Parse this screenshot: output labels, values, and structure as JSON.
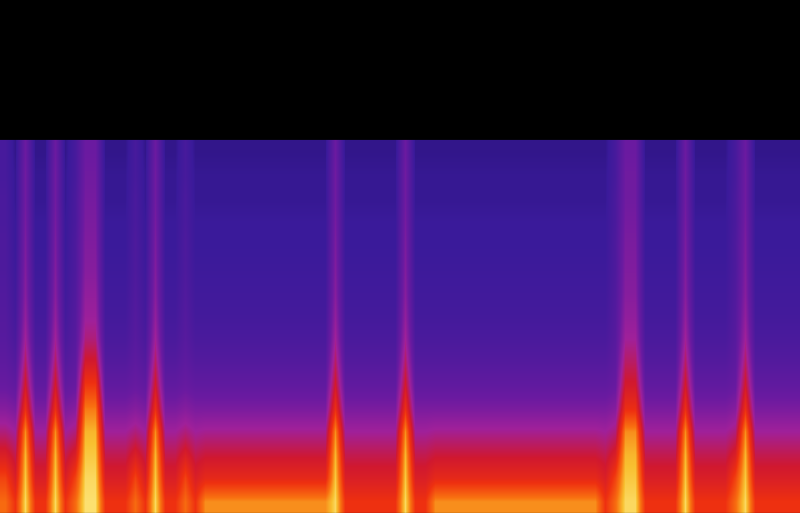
{
  "chart_data": {
    "type": "heatmap",
    "tick_labels": false,
    "grid": false,
    "xlim": [
      -0.5,
      79.5
    ],
    "ylim": [
      -0.5,
      21.5
    ],
    "zlim": [
      0,
      100
    ],
    "z": [
      [
        84,
        75,
        96,
        75,
        75,
        96,
        75,
        84,
        97,
        97,
        75,
        75,
        75,
        84,
        75,
        96,
        75,
        75,
        84,
        75,
        88,
        88,
        88,
        88,
        88,
        88,
        88,
        88,
        88,
        88,
        88,
        88,
        88,
        96,
        75,
        75,
        75,
        75,
        75,
        75,
        96,
        75,
        75,
        88,
        88,
        88,
        88,
        88,
        88,
        88,
        88,
        88,
        88,
        88,
        88,
        88,
        88,
        88,
        88,
        88,
        75,
        84,
        96,
        96,
        75,
        75,
        75,
        75,
        96,
        75,
        75,
        75,
        75,
        84,
        96,
        75,
        75,
        75,
        75,
        75
      ],
      [
        78,
        68,
        94,
        68,
        68,
        94,
        68,
        78,
        96,
        96,
        68,
        68,
        68,
        78,
        68,
        94,
        68,
        68,
        78,
        68,
        72,
        72,
        72,
        72,
        72,
        72,
        72,
        72,
        72,
        72,
        72,
        72,
        72,
        94,
        68,
        68,
        68,
        68,
        68,
        68,
        94,
        68,
        68,
        72,
        72,
        72,
        72,
        72,
        72,
        72,
        72,
        72,
        72,
        72,
        72,
        72,
        72,
        72,
        72,
        72,
        68,
        78,
        94,
        94,
        68,
        68,
        68,
        68,
        94,
        68,
        68,
        68,
        68,
        78,
        94,
        68,
        68,
        68,
        68,
        68
      ],
      [
        68,
        62,
        92,
        62,
        62,
        92,
        62,
        68,
        94,
        94,
        62,
        62,
        62,
        68,
        62,
        92,
        62,
        62,
        68,
        62,
        64,
        64,
        64,
        64,
        64,
        64,
        64,
        64,
        64,
        64,
        64,
        64,
        64,
        92,
        62,
        62,
        62,
        62,
        62,
        62,
        92,
        62,
        62,
        64,
        64,
        64,
        64,
        64,
        64,
        64,
        64,
        64,
        64,
        64,
        64,
        64,
        64,
        64,
        64,
        64,
        62,
        68,
        92,
        92,
        62,
        62,
        62,
        62,
        92,
        62,
        62,
        62,
        62,
        68,
        92,
        62,
        62,
        62,
        62,
        62
      ],
      [
        58,
        55,
        88,
        55,
        55,
        88,
        55,
        58,
        92,
        92,
        55,
        55,
        55,
        58,
        55,
        88,
        55,
        55,
        58,
        55,
        56,
        56,
        56,
        56,
        56,
        56,
        56,
        56,
        56,
        56,
        56,
        56,
        56,
        88,
        55,
        55,
        55,
        55,
        55,
        55,
        88,
        55,
        55,
        56,
        56,
        56,
        56,
        56,
        56,
        56,
        56,
        56,
        56,
        56,
        56,
        56,
        56,
        56,
        56,
        56,
        55,
        58,
        88,
        88,
        55,
        55,
        55,
        55,
        88,
        55,
        55,
        55,
        55,
        58,
        88,
        55,
        55,
        55,
        55,
        55
      ],
      [
        50,
        48,
        74,
        48,
        48,
        74,
        48,
        50,
        86,
        86,
        48,
        48,
        48,
        50,
        48,
        74,
        48,
        48,
        50,
        48,
        48,
        48,
        48,
        48,
        48,
        48,
        48,
        48,
        48,
        48,
        48,
        48,
        48,
        74,
        48,
        48,
        48,
        48,
        48,
        48,
        74,
        48,
        48,
        48,
        48,
        48,
        48,
        48,
        48,
        48,
        48,
        48,
        48,
        48,
        48,
        48,
        48,
        48,
        48,
        48,
        48,
        50,
        74,
        74,
        48,
        48,
        48,
        48,
        74,
        48,
        48,
        48,
        48,
        50,
        74,
        48,
        48,
        48,
        48,
        48
      ],
      [
        44,
        42,
        66,
        42,
        42,
        66,
        42,
        44,
        76,
        76,
        42,
        42,
        42,
        44,
        42,
        66,
        42,
        42,
        44,
        42,
        42,
        42,
        42,
        42,
        42,
        42,
        42,
        42,
        42,
        42,
        42,
        42,
        42,
        66,
        42,
        42,
        42,
        42,
        42,
        42,
        66,
        42,
        42,
        42,
        42,
        42,
        42,
        42,
        42,
        42,
        42,
        42,
        42,
        42,
        42,
        42,
        42,
        42,
        42,
        42,
        42,
        44,
        66,
        66,
        42,
        42,
        42,
        42,
        66,
        42,
        42,
        42,
        42,
        44,
        66,
        42,
        42,
        42,
        42,
        42
      ],
      [
        41,
        38,
        60,
        38,
        38,
        60,
        38,
        41,
        66,
        66,
        38,
        38,
        38,
        41,
        38,
        60,
        38,
        38,
        41,
        38,
        38,
        38,
        38,
        38,
        38,
        38,
        38,
        38,
        38,
        38,
        38,
        38,
        38,
        60,
        38,
        38,
        38,
        38,
        38,
        38,
        60,
        38,
        38,
        38,
        38,
        38,
        38,
        38,
        38,
        38,
        38,
        38,
        38,
        38,
        38,
        38,
        38,
        38,
        38,
        38,
        38,
        41,
        60,
        60,
        38,
        38,
        38,
        38,
        60,
        38,
        38,
        38,
        38,
        41,
        60,
        38,
        38,
        38,
        38,
        38
      ],
      [
        39,
        35,
        55,
        35,
        35,
        55,
        35,
        39,
        58,
        58,
        35,
        35,
        35,
        39,
        35,
        55,
        35,
        35,
        39,
        35,
        35,
        35,
        35,
        35,
        35,
        35,
        35,
        35,
        35,
        35,
        35,
        35,
        35,
        55,
        35,
        35,
        35,
        35,
        35,
        35,
        55,
        35,
        35,
        35,
        35,
        35,
        35,
        35,
        35,
        35,
        35,
        35,
        35,
        35,
        35,
        35,
        35,
        35,
        35,
        35,
        35,
        39,
        55,
        55,
        35,
        35,
        35,
        35,
        55,
        35,
        35,
        35,
        35,
        39,
        55,
        35,
        35,
        35,
        35,
        35
      ],
      [
        38,
        33,
        52,
        33,
        33,
        52,
        33,
        38,
        54,
        54,
        33,
        33,
        33,
        38,
        33,
        52,
        33,
        33,
        38,
        33,
        33,
        33,
        33,
        33,
        33,
        33,
        33,
        33,
        33,
        33,
        33,
        33,
        33,
        52,
        33,
        33,
        33,
        33,
        33,
        33,
        52,
        33,
        33,
        33,
        33,
        33,
        33,
        33,
        33,
        33,
        33,
        33,
        33,
        33,
        33,
        33,
        33,
        33,
        33,
        33,
        33,
        38,
        52,
        52,
        33,
        33,
        33,
        33,
        52,
        33,
        33,
        33,
        33,
        38,
        52,
        33,
        33,
        33,
        33,
        33
      ],
      [
        37,
        32,
        50,
        32,
        32,
        50,
        32,
        37,
        52,
        52,
        32,
        32,
        32,
        37,
        32,
        50,
        32,
        32,
        37,
        32,
        32,
        32,
        32,
        32,
        32,
        32,
        32,
        32,
        32,
        32,
        32,
        32,
        32,
        50,
        32,
        32,
        32,
        32,
        32,
        32,
        50,
        32,
        32,
        32,
        32,
        32,
        32,
        32,
        32,
        32,
        32,
        32,
        32,
        32,
        32,
        32,
        32,
        32,
        32,
        32,
        32,
        37,
        50,
        50,
        32,
        32,
        32,
        32,
        50,
        32,
        32,
        32,
        32,
        37,
        50,
        32,
        32,
        32,
        32,
        32
      ],
      [
        36,
        31,
        49,
        31,
        31,
        49,
        31,
        36,
        50,
        50,
        31,
        31,
        31,
        36,
        31,
        49,
        31,
        31,
        36,
        31,
        31,
        31,
        31,
        31,
        31,
        31,
        31,
        31,
        31,
        31,
        31,
        31,
        31,
        49,
        31,
        31,
        31,
        31,
        31,
        31,
        49,
        31,
        31,
        31,
        31,
        31,
        31,
        31,
        31,
        31,
        31,
        31,
        31,
        31,
        31,
        31,
        31,
        31,
        31,
        31,
        31,
        36,
        49,
        49,
        31,
        31,
        31,
        31,
        49,
        31,
        31,
        31,
        31,
        36,
        49,
        31,
        31,
        31,
        31,
        31
      ],
      [
        36,
        30,
        48,
        30,
        30,
        48,
        30,
        36,
        49,
        49,
        30,
        30,
        30,
        36,
        30,
        48,
        30,
        30,
        36,
        30,
        30,
        30,
        30,
        30,
        30,
        30,
        30,
        30,
        30,
        30,
        30,
        30,
        30,
        48,
        30,
        30,
        30,
        30,
        30,
        30,
        48,
        30,
        30,
        30,
        30,
        30,
        30,
        30,
        30,
        30,
        30,
        30,
        30,
        30,
        30,
        30,
        30,
        30,
        30,
        30,
        30,
        36,
        48,
        48,
        30,
        30,
        30,
        30,
        48,
        30,
        30,
        30,
        30,
        36,
        48,
        30,
        30,
        30,
        30,
        30
      ],
      [
        35,
        30,
        47,
        30,
        30,
        47,
        30,
        35,
        48,
        48,
        30,
        30,
        30,
        35,
        30,
        47,
        30,
        30,
        35,
        30,
        30,
        30,
        30,
        30,
        30,
        30,
        30,
        30,
        30,
        30,
        30,
        30,
        30,
        47,
        30,
        30,
        30,
        30,
        30,
        30,
        47,
        30,
        30,
        30,
        30,
        30,
        30,
        30,
        30,
        30,
        30,
        30,
        30,
        30,
        30,
        30,
        30,
        30,
        30,
        30,
        30,
        35,
        47,
        47,
        30,
        30,
        30,
        30,
        47,
        30,
        30,
        30,
        30,
        35,
        47,
        30,
        30,
        30,
        30,
        30
      ],
      [
        35,
        29,
        46,
        29,
        29,
        46,
        29,
        35,
        47,
        47,
        29,
        29,
        29,
        35,
        29,
        46,
        29,
        29,
        35,
        29,
        29,
        29,
        29,
        29,
        29,
        29,
        29,
        29,
        29,
        29,
        29,
        29,
        29,
        46,
        29,
        29,
        29,
        29,
        29,
        29,
        46,
        29,
        29,
        29,
        29,
        29,
        29,
        29,
        29,
        29,
        29,
        29,
        29,
        29,
        29,
        29,
        29,
        29,
        29,
        29,
        29,
        35,
        46,
        46,
        29,
        29,
        29,
        29,
        46,
        29,
        29,
        29,
        29,
        35,
        46,
        29,
        29,
        29,
        29,
        29
      ],
      [
        34,
        29,
        46,
        29,
        29,
        46,
        29,
        34,
        46,
        46,
        29,
        29,
        29,
        34,
        29,
        46,
        29,
        29,
        34,
        29,
        29,
        29,
        29,
        29,
        29,
        29,
        29,
        29,
        29,
        29,
        29,
        29,
        29,
        46,
        29,
        29,
        29,
        29,
        29,
        29,
        46,
        29,
        29,
        29,
        29,
        29,
        29,
        29,
        29,
        29,
        29,
        29,
        29,
        29,
        29,
        29,
        29,
        29,
        29,
        29,
        29,
        34,
        46,
        46,
        29,
        29,
        29,
        29,
        46,
        29,
        29,
        29,
        29,
        34,
        46,
        29,
        29,
        29,
        29,
        29
      ],
      [
        34,
        28,
        45,
        28,
        28,
        45,
        28,
        34,
        45,
        45,
        28,
        28,
        28,
        34,
        28,
        45,
        28,
        28,
        34,
        28,
        28,
        28,
        28,
        28,
        28,
        28,
        28,
        28,
        28,
        28,
        28,
        28,
        28,
        45,
        28,
        28,
        28,
        28,
        28,
        28,
        45,
        28,
        28,
        28,
        28,
        28,
        28,
        28,
        28,
        28,
        28,
        28,
        28,
        28,
        28,
        28,
        28,
        28,
        28,
        28,
        28,
        34,
        45,
        45,
        28,
        28,
        28,
        28,
        45,
        28,
        28,
        28,
        28,
        34,
        45,
        28,
        28,
        28,
        28,
        28
      ]
    ]
  }
}
